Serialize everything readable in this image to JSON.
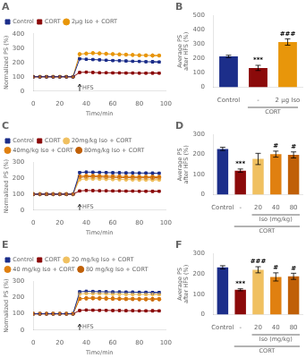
{
  "chart_data": [
    {
      "type": "line",
      "title": "A",
      "xlabel": "Time/min",
      "ylabel": "Normalized PS (%)",
      "x": [
        0,
        5,
        10,
        15,
        20,
        25,
        30,
        35,
        40,
        45,
        50,
        55,
        60,
        65,
        70,
        75,
        80,
        85,
        90,
        95,
        90
      ],
      "xlim": [
        0,
        100
      ],
      "xticks": [
        0,
        20,
        40,
        60,
        80,
        100
      ],
      "ylim": [
        0,
        400
      ],
      "yticks": [
        0,
        100,
        200,
        300,
        400
      ],
      "grid": false,
      "legend": "upper left",
      "series": [
        {
          "name": "Control",
          "color": "#1c2e8a",
          "marker": "square",
          "values": [
            100,
            100,
            100,
            100,
            100,
            100,
            100,
            225,
            222,
            220,
            218,
            215,
            213,
            212,
            210,
            208,
            207,
            205,
            204,
            203,
            205
          ],
          "errors": [
            5,
            5,
            5,
            5,
            5,
            5,
            5,
            6,
            6,
            6,
            6,
            6,
            6,
            6,
            6,
            6,
            6,
            6,
            6,
            6,
            6
          ]
        },
        {
          "name": "CORT",
          "color": "#8b0a0a",
          "marker": "square",
          "values": [
            100,
            100,
            100,
            100,
            100,
            100,
            100,
            130,
            132,
            130,
            128,
            128,
            127,
            127,
            126,
            126,
            125,
            125,
            126,
            125,
            126
          ],
          "errors": [
            4,
            4,
            4,
            4,
            4,
            4,
            4,
            5,
            5,
            5,
            5,
            5,
            5,
            5,
            5,
            5,
            5,
            5,
            5,
            5,
            5
          ]
        },
        {
          "name": "2μg Iso + CORT",
          "color": "#e8960a",
          "marker": "circle",
          "values": [
            100,
            100,
            100,
            100,
            100,
            100,
            100,
            258,
            262,
            265,
            263,
            260,
            258,
            256,
            254,
            252,
            250,
            249,
            248,
            248,
            248
          ],
          "errors": [
            5,
            5,
            5,
            5,
            5,
            5,
            5,
            8,
            8,
            8,
            8,
            8,
            8,
            8,
            8,
            8,
            8,
            8,
            8,
            8,
            8
          ]
        }
      ],
      "annotations": [
        {
          "text": "HFS",
          "x": 35
        }
      ]
    },
    {
      "type": "bar",
      "title": "B",
      "ylabel": "Average PS after HFS (%)",
      "categories": [
        "Control",
        "-",
        "2 μg Iso"
      ],
      "values": [
        215,
        135,
        315
      ],
      "errors": [
        8,
        18,
        22
      ],
      "colors": [
        "#1c2e8a",
        "#8b0a0a",
        "#e8960a"
      ],
      "ylim": [
        0,
        500
      ],
      "yticks": [
        0,
        100,
        200,
        300,
        400,
        500
      ],
      "grid": false,
      "annotations": [
        {
          "text": "***",
          "x": "-"
        },
        {
          "text": "###",
          "x": "2 μg Iso"
        },
        {
          "text": "CORT",
          "x": [
            "-",
            "2 μg Iso"
          ]
        }
      ]
    },
    {
      "type": "line",
      "title": "C",
      "xlabel": "Time/min",
      "ylabel": "Normalized PS (%)",
      "x": [
        0,
        5,
        10,
        15,
        20,
        25,
        30,
        35,
        40,
        45,
        50,
        55,
        60,
        65,
        70,
        75,
        80,
        85,
        90,
        95,
        90
      ],
      "xlim": [
        0,
        100
      ],
      "xticks": [
        0,
        20,
        40,
        60,
        80,
        100
      ],
      "ylim": [
        0,
        300
      ],
      "yticks": [
        0,
        100,
        200,
        300
      ],
      "grid": false,
      "legend": "upper left",
      "series": [
        {
          "name": "Control",
          "color": "#1c2e8a",
          "marker": "square",
          "values": [
            100,
            100,
            100,
            100,
            100,
            100,
            100,
            235,
            238,
            237,
            236,
            235,
            234,
            234,
            233,
            233,
            232,
            232,
            231,
            231,
            231
          ],
          "errors": [
            4,
            4,
            4,
            4,
            4,
            4,
            4,
            6,
            6,
            6,
            6,
            6,
            6,
            6,
            6,
            6,
            6,
            6,
            6,
            6,
            6
          ]
        },
        {
          "name": "CORT",
          "color": "#8b0a0a",
          "marker": "square",
          "values": [
            100,
            100,
            100,
            100,
            100,
            100,
            100,
            120,
            123,
            122,
            121,
            121,
            120,
            120,
            119,
            119,
            118,
            118,
            118,
            118,
            118
          ],
          "errors": [
            4,
            4,
            4,
            4,
            4,
            4,
            4,
            5,
            5,
            5,
            5,
            5,
            5,
            5,
            5,
            5,
            5,
            5,
            5,
            5,
            5
          ]
        },
        {
          "name": "20mg/kg Iso + CORT",
          "color": "#f0c060",
          "marker": "circle",
          "values": [
            100,
            100,
            100,
            100,
            100,
            100,
            100,
            192,
            195,
            196,
            195,
            194,
            193,
            192,
            191,
            191,
            190,
            190,
            190,
            190,
            190
          ],
          "errors": [
            5,
            5,
            5,
            5,
            5,
            5,
            5,
            8,
            8,
            8,
            8,
            8,
            8,
            8,
            8,
            8,
            8,
            8,
            8,
            8,
            8
          ]
        },
        {
          "name": "40mg/kg Iso + CORT",
          "color": "#e08010",
          "marker": "circle",
          "values": [
            100,
            100,
            100,
            100,
            100,
            100,
            100,
            212,
            215,
            215,
            214,
            213,
            212,
            211,
            210,
            210,
            209,
            209,
            209,
            209,
            209
          ],
          "errors": [
            5,
            5,
            5,
            5,
            5,
            5,
            5,
            8,
            8,
            8,
            8,
            8,
            8,
            8,
            8,
            8,
            8,
            8,
            8,
            8,
            8
          ]
        },
        {
          "name": "80mg/kg Iso + CORT",
          "color": "#c06008",
          "marker": "circle",
          "values": [
            100,
            100,
            100,
            100,
            100,
            100,
            100,
            205,
            208,
            208,
            207,
            206,
            205,
            204,
            203,
            202,
            202,
            202,
            202,
            202,
            202
          ],
          "errors": [
            5,
            5,
            5,
            5,
            5,
            5,
            5,
            8,
            8,
            8,
            8,
            8,
            8,
            8,
            8,
            8,
            8,
            8,
            8,
            8,
            8
          ]
        }
      ],
      "annotations": [
        {
          "text": "HFS",
          "x": 35
        }
      ]
    },
    {
      "type": "bar",
      "title": "D",
      "ylabel": "Average PS after HFS (%)",
      "categories": [
        "Control",
        "-",
        "20",
        "40",
        "80"
      ],
      "values": [
        228,
        120,
        178,
        202,
        198
      ],
      "errors": [
        8,
        8,
        28,
        15,
        15
      ],
      "colors": [
        "#1c2e8a",
        "#8b0a0a",
        "#f0c060",
        "#e08010",
        "#c06008"
      ],
      "ylim": [
        0,
        300
      ],
      "yticks": [
        0,
        100,
        200,
        300
      ],
      "grid": false,
      "annotations": [
        {
          "text": "***",
          "x": "-"
        },
        {
          "text": "#",
          "x": "40"
        },
        {
          "text": "#",
          "x": "80"
        },
        {
          "text": "Iso (mg/kg)",
          "x": [
            "20",
            "80"
          ]
        },
        {
          "text": "CORT",
          "x": [
            "-",
            "80"
          ]
        }
      ]
    },
    {
      "type": "line",
      "title": "E",
      "xlabel": "Time/min",
      "ylabel": "Normalized PS (%)",
      "x": [
        0,
        5,
        10,
        15,
        20,
        25,
        30,
        35,
        40,
        45,
        50,
        55,
        60,
        65,
        70,
        75,
        80,
        85,
        90,
        95,
        90
      ],
      "xlim": [
        0,
        100
      ],
      "xticks": [
        0,
        20,
        40,
        60,
        80,
        100
      ],
      "ylim": [
        0,
        300
      ],
      "yticks": [
        0,
        100,
        200,
        300
      ],
      "grid": false,
      "legend": "upper left",
      "series": [
        {
          "name": "Control",
          "color": "#1c2e8a",
          "marker": "square",
          "values": [
            100,
            100,
            100,
            100,
            100,
            100,
            100,
            235,
            238,
            237,
            236,
            235,
            234,
            234,
            233,
            233,
            232,
            232,
            231,
            231,
            231
          ],
          "errors": [
            4,
            4,
            4,
            4,
            4,
            4,
            4,
            6,
            6,
            6,
            6,
            6,
            6,
            6,
            6,
            6,
            6,
            6,
            6,
            6,
            6
          ]
        },
        {
          "name": "CORT",
          "color": "#8b0a0a",
          "marker": "square",
          "values": [
            100,
            100,
            100,
            100,
            100,
            100,
            100,
            120,
            123,
            122,
            121,
            121,
            120,
            120,
            119,
            119,
            118,
            118,
            118,
            118,
            118
          ],
          "errors": [
            4,
            4,
            4,
            4,
            4,
            4,
            4,
            5,
            5,
            5,
            5,
            5,
            5,
            5,
            5,
            5,
            5,
            5,
            5,
            5,
            5
          ]
        },
        {
          "name": "20 mg/kg Iso + CORT",
          "color": "#f0c060",
          "marker": "circle",
          "values": [
            100,
            100,
            100,
            100,
            100,
            100,
            100,
            222,
            225,
            225,
            224,
            223,
            222,
            221,
            220,
            220,
            219,
            219,
            219,
            219,
            219
          ],
          "errors": [
            5,
            5,
            5,
            5,
            5,
            5,
            5,
            8,
            8,
            8,
            8,
            8,
            8,
            8,
            8,
            8,
            8,
            8,
            8,
            8,
            8
          ]
        },
        {
          "name": "40 mg/kg Iso + CORT",
          "color": "#e08010",
          "marker": "circle",
          "values": [
            100,
            100,
            100,
            100,
            100,
            100,
            100,
            192,
            195,
            196,
            195,
            194,
            193,
            192,
            191,
            191,
            190,
            190,
            190,
            190,
            190
          ],
          "errors": [
            5,
            5,
            5,
            5,
            5,
            5,
            5,
            8,
            8,
            8,
            8,
            8,
            8,
            8,
            8,
            8,
            8,
            8,
            8,
            8,
            8
          ]
        },
        {
          "name": "80 mg/kg Iso + CORT",
          "color": "#c06008",
          "marker": "circle",
          "values": [
            100,
            100,
            100,
            100,
            100,
            100,
            100,
            192,
            195,
            196,
            195,
            194,
            193,
            192,
            191,
            191,
            190,
            190,
            190,
            190,
            190
          ],
          "errors": [
            5,
            5,
            5,
            5,
            5,
            5,
            5,
            8,
            8,
            8,
            8,
            8,
            8,
            8,
            8,
            8,
            8,
            8,
            8,
            8,
            8
          ]
        }
      ],
      "annotations": [
        {
          "text": "HFS",
          "x": 35
        }
      ]
    },
    {
      "type": "bar",
      "title": "F",
      "ylabel": "Average PS after HFS (%)",
      "categories": [
        "Control",
        "-",
        "20",
        "40",
        "80"
      ],
      "values": [
        232,
        122,
        220,
        185,
        188
      ],
      "errors": [
        8,
        5,
        15,
        20,
        15
      ],
      "colors": [
        "#1c2e8a",
        "#8b0a0a",
        "#f0c060",
        "#e08010",
        "#c06008"
      ],
      "ylim": [
        0,
        300
      ],
      "yticks": [
        0,
        100,
        200,
        300
      ],
      "grid": false,
      "annotations": [
        {
          "text": "***",
          "x": "-"
        },
        {
          "text": "###",
          "x": "20"
        },
        {
          "text": "#",
          "x": "40"
        },
        {
          "text": "#",
          "x": "80"
        },
        {
          "text": "Iso (mg/kg)",
          "x": [
            "20",
            "80"
          ]
        },
        {
          "text": "CORT",
          "x": [
            "-",
            "80"
          ]
        }
      ]
    }
  ]
}
